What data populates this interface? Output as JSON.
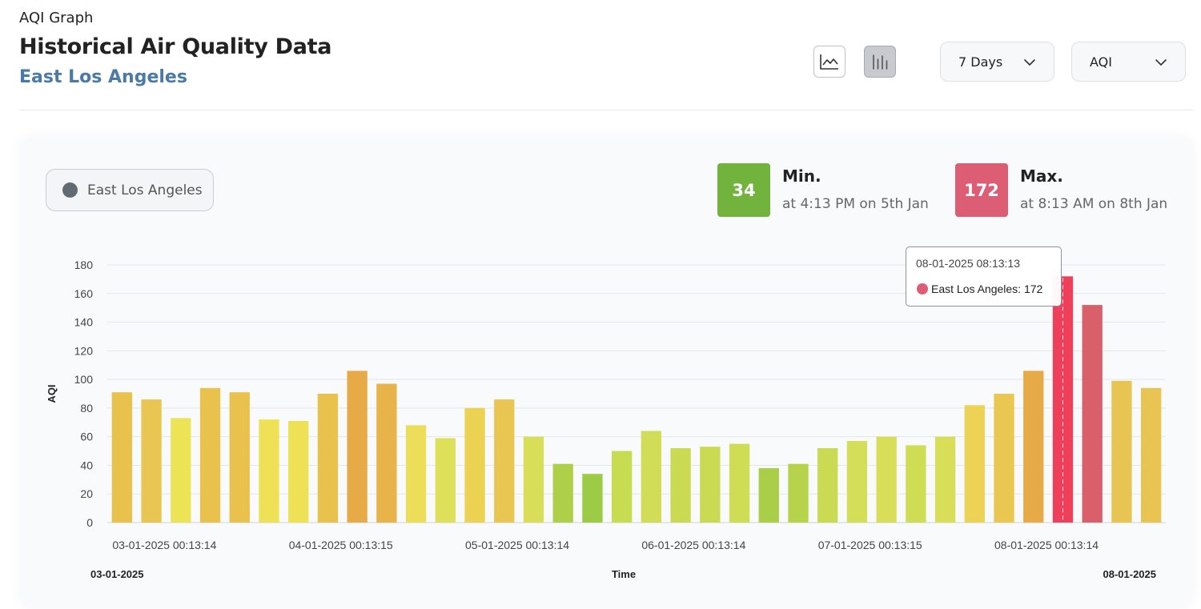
{
  "header": {
    "small_title": "AQI Graph",
    "title": "Historical Air Quality Data",
    "location": "East Los Angeles"
  },
  "toolbar": {
    "line_chart_icon": "line-chart-icon",
    "bar_chart_icon": "bar-chart-icon",
    "range_value": "7 Days",
    "metric_value": "AQI"
  },
  "legend": {
    "label": "East Los Angeles",
    "color": "#626b74"
  },
  "stats": {
    "min": {
      "value": "34",
      "label": "Min.",
      "sub": "at 4:13 PM on 5th Jan",
      "color": "#72b33d"
    },
    "max": {
      "value": "172",
      "label": "Max.",
      "sub": "at 8:13 AM on 8th Jan",
      "color": "#dc5d74"
    }
  },
  "tooltip": {
    "time": "08-01-2025 08:13:13",
    "series_text": "East Los Angeles: 172",
    "color": "#dc5d74"
  },
  "chart_data": {
    "type": "bar",
    "ylabel": "AQI",
    "xlabel": "Time",
    "ylim": [
      0,
      180
    ],
    "y_ticks": [
      0,
      20,
      40,
      60,
      80,
      100,
      120,
      140,
      160,
      180
    ],
    "grid": true,
    "x_tick_labels": [
      "03-01-2025 00:13:14",
      "04-01-2025 00:13:15",
      "05-01-2025 00:13:14",
      "06-01-2025 00:13:14",
      "07-01-2025 00:13:15",
      "08-01-2025 00:13:14"
    ],
    "range_start_label": "03-01-2025",
    "range_end_label": "08-01-2025",
    "highlighted_index": 32,
    "series": [
      {
        "name": "East Los Angeles",
        "values": [
          91,
          86,
          73,
          94,
          91,
          72,
          71,
          90,
          106,
          97,
          68,
          59,
          80,
          86,
          60,
          41,
          34,
          50,
          64,
          52,
          53,
          55,
          38,
          41,
          52,
          57,
          60,
          54,
          60,
          82,
          90,
          106,
          172,
          152,
          99,
          94
        ],
        "colors": [
          "#e9c24d",
          "#e9c652",
          "#ede357",
          "#e9c24d",
          "#e9c24d",
          "#eee155",
          "#eee155",
          "#e9c24d",
          "#e6ab47",
          "#e8b44a",
          "#ecde59",
          "#dfe05a",
          "#ebd253",
          "#e9c652",
          "#d8de58",
          "#aecf48",
          "#9ccc45",
          "#c8dc52",
          "#d1dd56",
          "#cadb53",
          "#cadb53",
          "#cfdd55",
          "#aace47",
          "#b6d34b",
          "#cadb53",
          "#d5de57",
          "#d8de58",
          "#cfdd55",
          "#d8de58",
          "#ecd356",
          "#eac750",
          "#e6ab47",
          "#ee3f5b",
          "#d9606a",
          "#e8c552",
          "#e8c552"
        ]
      }
    ]
  }
}
